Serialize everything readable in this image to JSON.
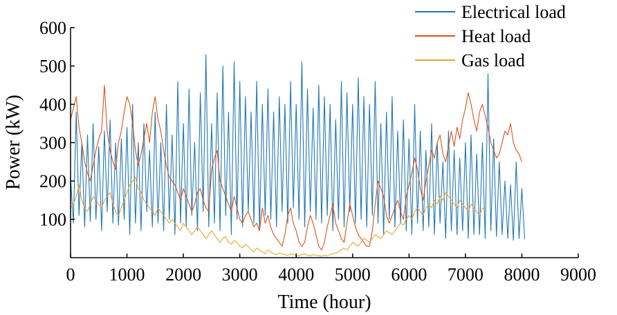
{
  "chart_data": {
    "type": "line",
    "title": "",
    "xlabel": "Time (hour)",
    "ylabel": "Power (kW)",
    "xlim": [
      0,
      9000
    ],
    "ylim": [
      0,
      600
    ],
    "x_ticks": [
      0,
      1000,
      2000,
      3000,
      4000,
      5000,
      6000,
      7000,
      8000,
      9000
    ],
    "y_ticks": [
      100,
      200,
      300,
      400,
      500,
      600
    ],
    "grid": false,
    "legend_position": "top-right",
    "x_step": 50,
    "series": [
      {
        "name": "Electrical load",
        "color": "#1f77b4",
        "x_start": 0,
        "values": [
          210,
          90,
          380,
          110,
          300,
          80,
          320,
          95,
          350,
          100,
          290,
          70,
          330,
          120,
          360,
          90,
          300,
          85,
          310,
          100,
          340,
          60,
          400,
          90,
          300,
          70,
          350,
          120,
          280,
          80,
          380,
          90,
          300,
          70,
          400,
          100,
          320,
          60,
          460,
          90,
          350,
          80,
          440,
          110,
          300,
          70,
          430,
          120,
          530,
          80,
          350,
          90,
          430,
          70,
          500,
          110,
          380,
          60,
          510,
          100,
          460,
          80,
          420,
          120,
          380,
          90,
          460,
          70,
          400,
          110,
          440,
          100,
          380,
          80,
          420,
          120,
          400,
          90,
          460,
          130,
          400,
          100,
          510,
          80,
          440,
          120,
          390,
          100,
          450,
          90,
          420,
          110,
          400,
          70,
          360,
          100,
          460,
          80,
          430,
          120,
          400,
          90,
          470,
          100,
          420,
          80,
          400,
          110,
          460,
          90,
          350,
          60,
          380,
          100,
          420,
          80,
          330,
          90,
          360,
          70,
          310,
          60,
          400,
          90,
          330,
          70,
          280,
          80,
          350,
          60,
          300,
          90,
          250,
          50,
          330,
          70,
          280,
          60,
          260,
          70,
          300,
          50,
          320,
          60,
          270,
          60,
          300,
          50,
          480,
          70,
          310,
          55,
          250,
          60,
          200,
          50,
          190,
          45,
          250,
          50,
          180,
          48
        ]
      },
      {
        "name": "Heat load",
        "color": "#d95319",
        "x_start": 0,
        "values": [
          360,
          390,
          420,
          340,
          300,
          250,
          220,
          200,
          240,
          280,
          310,
          330,
          450,
          330,
          280,
          250,
          230,
          300,
          330,
          380,
          420,
          400,
          350,
          280,
          240,
          270,
          310,
          350,
          300,
          380,
          420,
          360,
          330,
          280,
          240,
          210,
          200,
          190,
          170,
          150,
          180,
          160,
          140,
          120,
          140,
          170,
          180,
          150,
          130,
          120,
          230,
          260,
          280,
          200,
          180,
          160,
          140,
          120,
          160,
          130,
          100,
          90,
          110,
          120,
          100,
          80,
          90,
          70,
          130,
          90,
          110,
          80,
          60,
          50,
          40,
          30,
          60,
          110,
          130,
          90,
          70,
          40,
          30,
          40,
          80,
          110,
          90,
          60,
          30,
          20,
          40,
          80,
          110,
          140,
          90,
          70,
          50,
          40,
          90,
          140,
          110,
          80,
          60,
          50,
          40,
          30,
          30,
          70,
          140,
          200,
          180,
          160,
          110,
          90,
          110,
          130,
          150,
          120,
          100,
          160,
          190,
          220,
          260,
          230,
          180,
          150,
          200,
          240,
          280,
          260,
          300,
          320,
          270,
          250,
          290,
          330,
          290,
          340,
          310,
          360,
          390,
          430,
          400,
          360,
          330,
          380,
          400,
          370,
          340,
          300,
          280,
          260,
          270,
          300,
          330,
          320,
          350,
          300,
          280,
          270,
          250
        ]
      },
      {
        "name": "Gas load",
        "color": "#e6a532",
        "x_start": 0,
        "values": [
          130,
          140,
          160,
          190,
          150,
          130,
          120,
          140,
          160,
          150,
          140,
          130,
          150,
          160,
          170,
          140,
          120,
          110,
          130,
          150,
          170,
          190,
          200,
          210,
          180,
          170,
          150,
          140,
          130,
          120,
          110,
          130,
          120,
          110,
          100,
          90,
          100,
          90,
          80,
          70,
          90,
          80,
          70,
          60,
          70,
          80,
          70,
          60,
          50,
          60,
          70,
          60,
          50,
          40,
          50,
          55,
          40,
          35,
          45,
          40,
          30,
          25,
          35,
          30,
          20,
          15,
          25,
          20,
          15,
          10,
          20,
          15,
          10,
          8,
          12,
          10,
          8,
          6,
          10,
          8,
          6,
          5,
          8,
          10,
          6,
          5,
          8,
          6,
          5,
          4,
          6,
          5,
          8,
          10,
          12,
          15,
          20,
          25,
          20,
          30,
          40,
          35,
          30,
          40,
          50,
          45,
          40,
          50,
          60,
          55,
          50,
          60,
          70,
          65,
          60,
          70,
          80,
          90,
          85,
          100,
          110,
          100,
          120,
          130,
          120,
          110,
          130,
          140,
          130,
          150,
          140,
          160,
          150,
          170,
          160,
          150,
          140,
          130,
          150,
          140,
          130,
          120,
          140,
          130,
          120,
          110,
          130,
          125
        ]
      }
    ]
  }
}
